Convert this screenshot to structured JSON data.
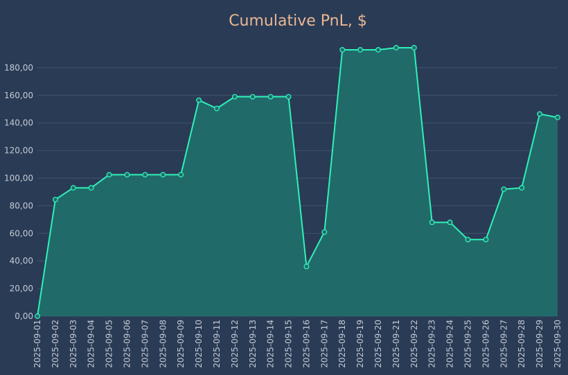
{
  "colors": {
    "background": "#2a3b55",
    "title": "#e8b894",
    "line": "#2ef2b8",
    "fill": "#216a6a",
    "grid": "#3e5470",
    "tick": "#c3cbd6",
    "marker_fill": "#216a6a"
  },
  "chart_data": {
    "type": "area",
    "title": "Cumulative PnL, $",
    "xlabel": "",
    "ylabel": "",
    "ylim": [
      0,
      200
    ],
    "yticks": [
      0,
      20,
      40,
      60,
      80,
      100,
      120,
      140,
      160,
      180
    ],
    "ytick_labels": [
      "0,00",
      "20,00",
      "40,00",
      "60,00",
      "80,00",
      "100,00",
      "120,00",
      "140,00",
      "160,00",
      "180,00"
    ],
    "grid": true,
    "legend": "none",
    "x": [
      "2025-09-01",
      "2025-09-02",
      "2025-09-03",
      "2025-09-04",
      "2025-09-05",
      "2025-09-06",
      "2025-09-07",
      "2025-09-08",
      "2025-09-09",
      "2025-09-10",
      "2025-09-11",
      "2025-09-12",
      "2025-09-13",
      "2025-09-14",
      "2025-09-15",
      "2025-09-16",
      "2025-09-17",
      "2025-09-18",
      "2025-09-19",
      "2025-09-20",
      "2025-09-21",
      "2025-09-22",
      "2025-09-23",
      "2025-09-24",
      "2025-09-25",
      "2025-09-26",
      "2025-09-27",
      "2025-09-28",
      "2025-09-29",
      "2025-09-30"
    ],
    "series": [
      {
        "values": [
          0,
          84.5,
          93,
          93,
          102.5,
          102.5,
          102.5,
          102.5,
          102.5,
          156.5,
          150.5,
          159,
          159,
          159,
          159,
          36,
          61,
          193,
          193,
          193,
          194.5,
          194.5,
          68,
          68,
          55.5,
          55.5,
          92,
          93,
          146.5,
          144
        ]
      }
    ]
  }
}
